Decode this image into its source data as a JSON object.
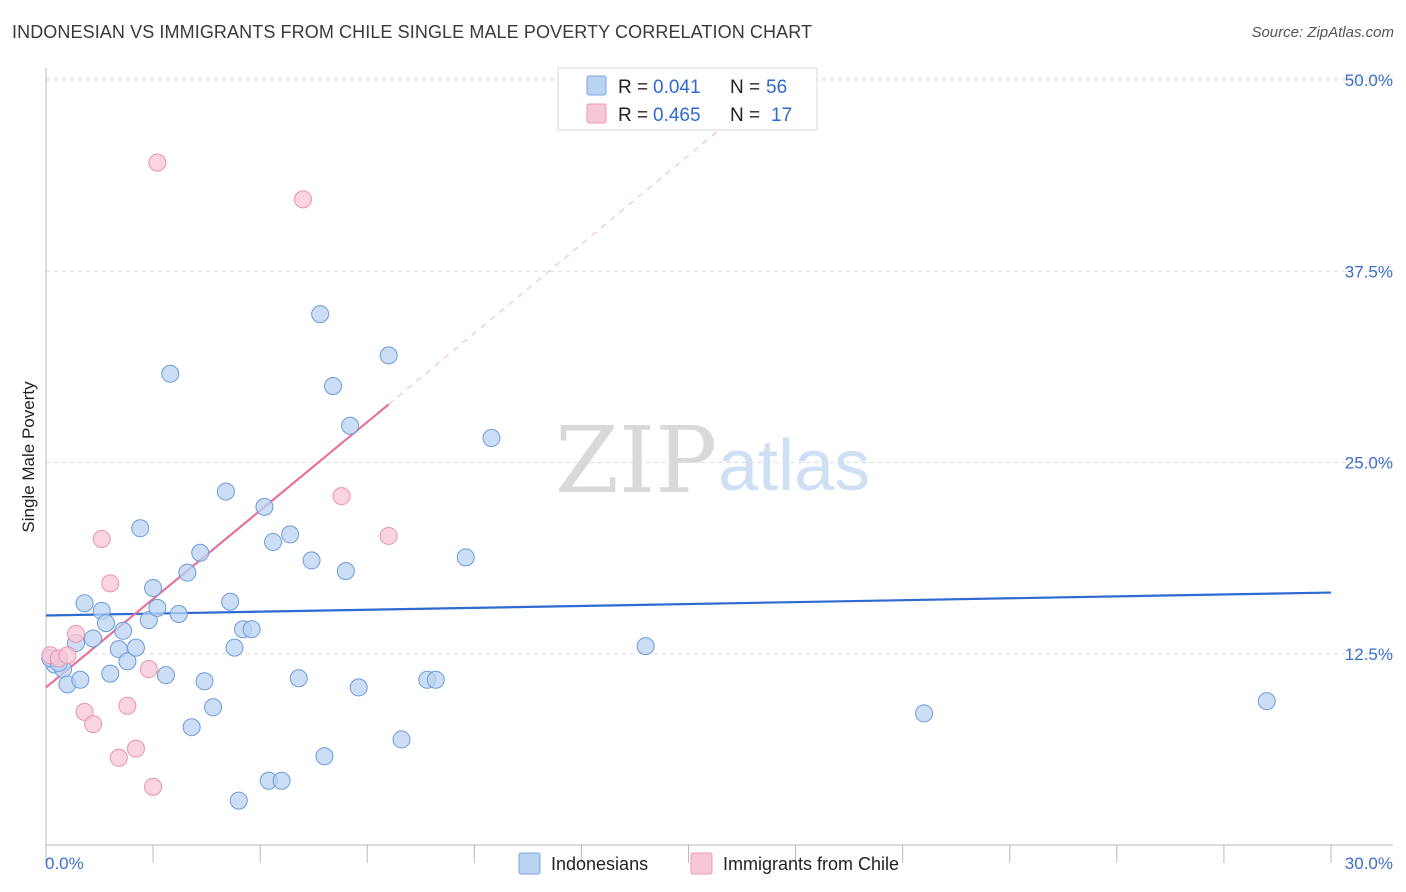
{
  "title": "INDONESIAN VS IMMIGRANTS FROM CHILE SINGLE MALE POVERTY CORRELATION CHART",
  "source": "Source: ZipAtlas.com",
  "watermark": {
    "part1": "ZIP",
    "part2": "atlas"
  },
  "colors": {
    "blue": "#2f6ad0",
    "blue_fill": "#b9d3f3",
    "pink": "#e8709a",
    "pink_fill": "#f8c7d7",
    "grid": "#dddddd",
    "tick_label": "#3b6fc9"
  },
  "legend": {
    "rows": [
      {
        "r_label": "R =",
        "r_value": "0.041",
        "n_label": "N =",
        "n_value": "56"
      },
      {
        "r_label": "R =",
        "r_value": "0.465",
        "n_label": "N =",
        "n_value": "17"
      }
    ]
  },
  "chart_data": {
    "type": "scatter",
    "title": "INDONESIAN VS IMMIGRANTS FROM CHILE SINGLE MALE POVERTY CORRELATION CHART",
    "xlabel": "",
    "ylabel": "Single Male Poverty",
    "xlim": [
      0,
      30
    ],
    "ylim": [
      0,
      50
    ],
    "x_tick_labels": [
      "0.0%",
      "30.0%"
    ],
    "y_ticks": [
      12.5,
      25.0,
      37.5,
      50.0
    ],
    "y_tick_labels": [
      "12.5%",
      "25.0%",
      "37.5%",
      "50.0%"
    ],
    "grid": "horizontal dashed",
    "legend_position": "top-center",
    "series": [
      {
        "name": "Indonesians",
        "color": "#2f6ad0",
        "fill": "#b9d3f3",
        "r": 0.041,
        "n": 56,
        "trend": {
          "x": [
            0,
            30
          ],
          "y": [
            15.0,
            16.5
          ]
        },
        "points": [
          [
            0.2,
            11.8
          ],
          [
            0.4,
            11.5
          ],
          [
            0.5,
            10.5
          ],
          [
            0.7,
            13.2
          ],
          [
            0.8,
            10.8
          ],
          [
            0.9,
            15.8
          ],
          [
            1.1,
            13.5
          ],
          [
            1.3,
            15.3
          ],
          [
            1.4,
            14.5
          ],
          [
            1.5,
            11.2
          ],
          [
            1.7,
            12.8
          ],
          [
            1.8,
            14.0
          ],
          [
            1.9,
            12.0
          ],
          [
            2.1,
            12.9
          ],
          [
            2.2,
            20.7
          ],
          [
            2.4,
            14.7
          ],
          [
            2.5,
            16.8
          ],
          [
            2.6,
            15.5
          ],
          [
            2.8,
            11.1
          ],
          [
            2.9,
            30.8
          ],
          [
            3.1,
            15.1
          ],
          [
            3.3,
            17.8
          ],
          [
            3.4,
            7.7
          ],
          [
            3.6,
            19.1
          ],
          [
            3.7,
            10.7
          ],
          [
            3.9,
            9.0
          ],
          [
            4.2,
            23.1
          ],
          [
            4.3,
            15.9
          ],
          [
            4.4,
            12.9
          ],
          [
            4.5,
            2.9
          ],
          [
            4.6,
            14.1
          ],
          [
            4.8,
            14.1
          ],
          [
            5.1,
            22.1
          ],
          [
            5.2,
            4.2
          ],
          [
            5.3,
            19.8
          ],
          [
            5.5,
            4.2
          ],
          [
            5.7,
            20.3
          ],
          [
            5.9,
            10.9
          ],
          [
            6.2,
            18.6
          ],
          [
            6.4,
            34.7
          ],
          [
            6.5,
            5.8
          ],
          [
            6.7,
            30.0
          ],
          [
            7.0,
            17.9
          ],
          [
            7.1,
            27.4
          ],
          [
            7.3,
            10.3
          ],
          [
            8.0,
            32.0
          ],
          [
            8.3,
            6.9
          ],
          [
            8.9,
            10.8
          ],
          [
            9.1,
            10.8
          ],
          [
            9.8,
            18.8
          ],
          [
            10.4,
            26.6
          ],
          [
            14.0,
            13.0
          ],
          [
            20.5,
            8.6
          ],
          [
            28.5,
            9.4
          ],
          [
            0.1,
            12.2
          ],
          [
            0.3,
            11.9
          ]
        ]
      },
      {
        "name": "Immigrants from Chile",
        "color": "#e8709a",
        "fill": "#f8c7d7",
        "r": 0.465,
        "n": 17,
        "trend": {
          "x": [
            0,
            8.0
          ],
          "y": [
            10.3,
            28.8
          ]
        },
        "trend_dashed": {
          "x": [
            8.0,
            16.0
          ],
          "y": [
            28.8,
            47.4
          ]
        },
        "points": [
          [
            0.1,
            12.4
          ],
          [
            0.3,
            12.2
          ],
          [
            0.5,
            12.4
          ],
          [
            0.7,
            13.8
          ],
          [
            0.9,
            8.7
          ],
          [
            1.1,
            7.9
          ],
          [
            1.3,
            20.0
          ],
          [
            1.5,
            17.1
          ],
          [
            1.7,
            5.7
          ],
          [
            1.9,
            9.1
          ],
          [
            2.1,
            6.3
          ],
          [
            2.4,
            11.5
          ],
          [
            2.5,
            3.8
          ],
          [
            2.6,
            44.6
          ],
          [
            6.0,
            42.2
          ],
          [
            6.9,
            22.8
          ],
          [
            8.0,
            20.2
          ]
        ]
      }
    ]
  },
  "bottom_legend": [
    {
      "label": "Indonesians"
    },
    {
      "label": "Immigrants from Chile"
    }
  ]
}
